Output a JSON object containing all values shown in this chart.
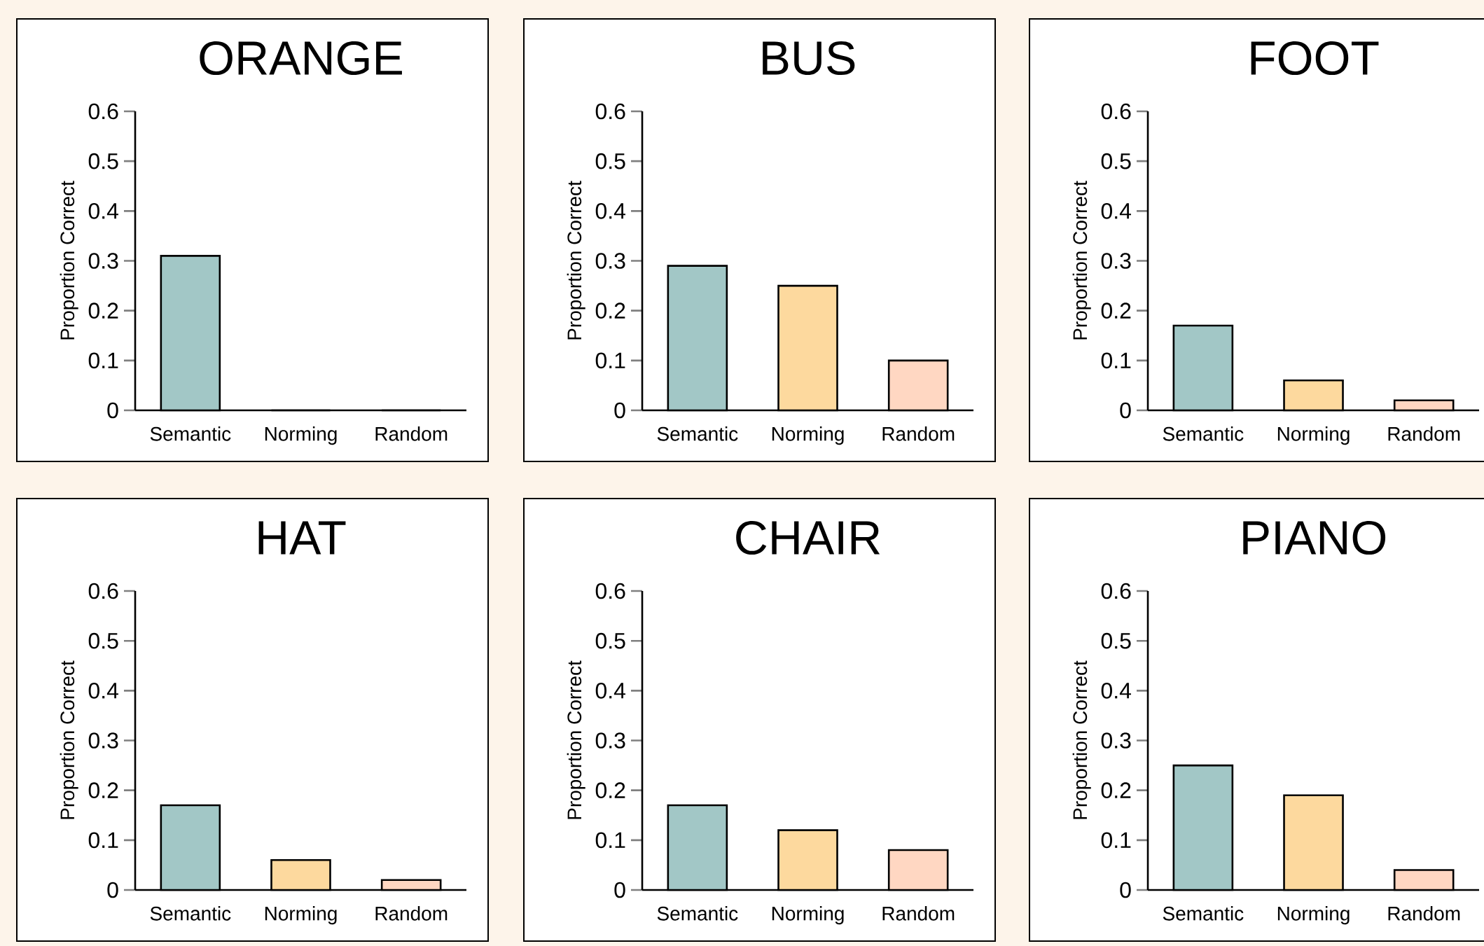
{
  "chart_data": [
    {
      "type": "bar",
      "title": "ORANGE",
      "ylabel": "Proportion Correct",
      "categories": [
        "Semantic",
        "Norming",
        "Random"
      ],
      "values": [
        0.31,
        0,
        0
      ],
      "colors": [
        "#a2c7c6",
        "#fdd99e",
        "#ffd7c2"
      ],
      "ylim": [
        0,
        0.6
      ],
      "yticks": [
        0,
        0.1,
        0.2,
        0.3,
        0.4,
        0.5,
        0.6
      ]
    },
    {
      "type": "bar",
      "title": "BUS",
      "ylabel": "Proportion Correct",
      "categories": [
        "Semantic",
        "Norming",
        "Random"
      ],
      "values": [
        0.29,
        0.25,
        0.1
      ],
      "colors": [
        "#a2c7c6",
        "#fdd99e",
        "#ffd7c2"
      ],
      "ylim": [
        0,
        0.6
      ],
      "yticks": [
        0,
        0.1,
        0.2,
        0.3,
        0.4,
        0.5,
        0.6
      ]
    },
    {
      "type": "bar",
      "title": "FOOT",
      "ylabel": "Proportion Correct",
      "categories": [
        "Semantic",
        "Norming",
        "Random"
      ],
      "values": [
        0.17,
        0.06,
        0.02
      ],
      "colors": [
        "#a2c7c6",
        "#fdd99e",
        "#ffd7c2"
      ],
      "ylim": [
        0,
        0.6
      ],
      "yticks": [
        0,
        0.1,
        0.2,
        0.3,
        0.4,
        0.5,
        0.6
      ]
    },
    {
      "type": "bar",
      "title": "HAT",
      "ylabel": "Proportion Correct",
      "categories": [
        "Semantic",
        "Norming",
        "Random"
      ],
      "values": [
        0.17,
        0.06,
        0.02
      ],
      "colors": [
        "#a2c7c6",
        "#fdd99e",
        "#ffd7c2"
      ],
      "ylim": [
        0,
        0.6
      ],
      "yticks": [
        0,
        0.1,
        0.2,
        0.3,
        0.4,
        0.5,
        0.6
      ]
    },
    {
      "type": "bar",
      "title": "CHAIR",
      "ylabel": "Proportion Correct",
      "categories": [
        "Semantic",
        "Norming",
        "Random"
      ],
      "values": [
        0.17,
        0.12,
        0.08
      ],
      "colors": [
        "#a2c7c6",
        "#fdd99e",
        "#ffd7c2"
      ],
      "ylim": [
        0,
        0.6
      ],
      "yticks": [
        0,
        0.1,
        0.2,
        0.3,
        0.4,
        0.5,
        0.6
      ]
    },
    {
      "type": "bar",
      "title": "PIANO",
      "ylabel": "Proportion Correct",
      "categories": [
        "Semantic",
        "Norming",
        "Random"
      ],
      "values": [
        0.25,
        0.19,
        0.04
      ],
      "colors": [
        "#a2c7c6",
        "#fdd99e",
        "#ffd7c2"
      ],
      "ylim": [
        0,
        0.6
      ],
      "yticks": [
        0,
        0.1,
        0.2,
        0.3,
        0.4,
        0.5,
        0.6
      ]
    }
  ]
}
